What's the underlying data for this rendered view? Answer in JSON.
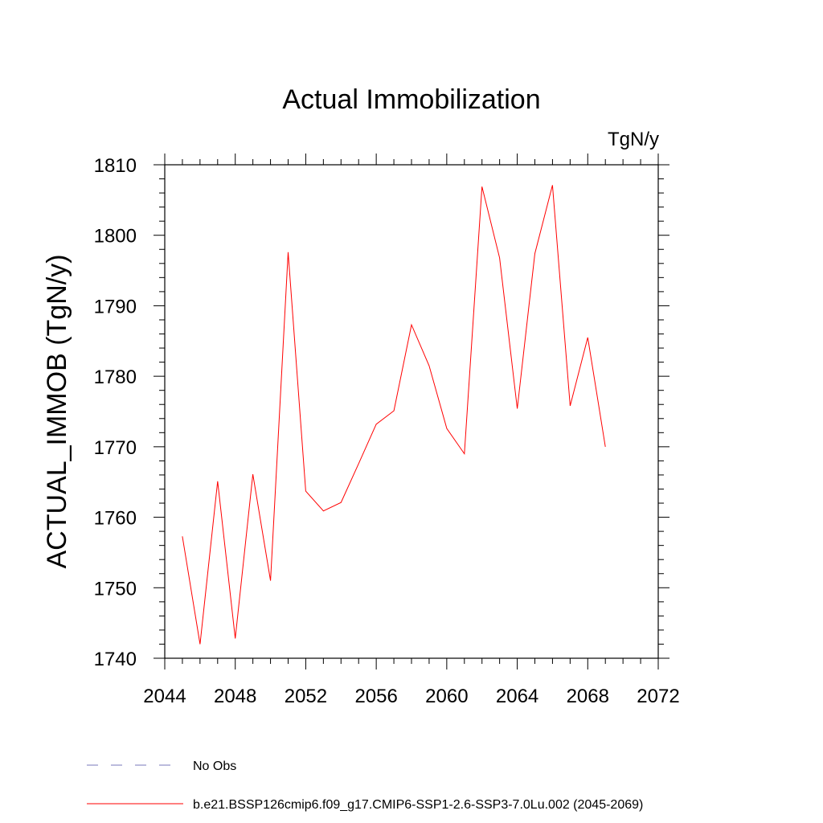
{
  "chart_data": {
    "type": "line",
    "title": "Actual Immobilization",
    "units": "TgN/y",
    "ylabel": "ACTUAL_IMMOB  (TgN/y)",
    "xlabel": "",
    "xlim": [
      2044,
      2072
    ],
    "ylim": [
      1740,
      1810
    ],
    "xticks": [
      2044,
      2048,
      2052,
      2056,
      2060,
      2064,
      2068,
      2072
    ],
    "yticks": [
      1740,
      1750,
      1760,
      1770,
      1780,
      1790,
      1800,
      1810
    ],
    "grid": false,
    "legend_position": "bottom-left",
    "series": [
      {
        "name": "No Obs",
        "color": "#7777bb",
        "style": "dashed",
        "x": [],
        "y": []
      },
      {
        "name": "b.e21.BSSP126cmip6.f09_g17.CMIP6-SSP1-2.6-SSP3-7.0Lu.002 (2045-2069)",
        "color": "#ff0000",
        "style": "solid",
        "x": [
          2045,
          2046,
          2047,
          2048,
          2049,
          2050,
          2051,
          2052,
          2053,
          2054,
          2055,
          2056,
          2057,
          2058,
          2059,
          2060,
          2061,
          2062,
          2063,
          2064,
          2065,
          2066,
          2067,
          2068,
          2069
        ],
        "y": [
          1757.3,
          1742.0,
          1765.1,
          1742.8,
          1766.1,
          1751.0,
          1797.6,
          1763.7,
          1760.9,
          1762.1,
          1767.6,
          1773.2,
          1775.1,
          1787.3,
          1781.5,
          1772.6,
          1769.0,
          1806.9,
          1796.8,
          1775.4,
          1797.4,
          1807.1,
          1775.8,
          1785.5,
          1770.0
        ]
      }
    ]
  }
}
